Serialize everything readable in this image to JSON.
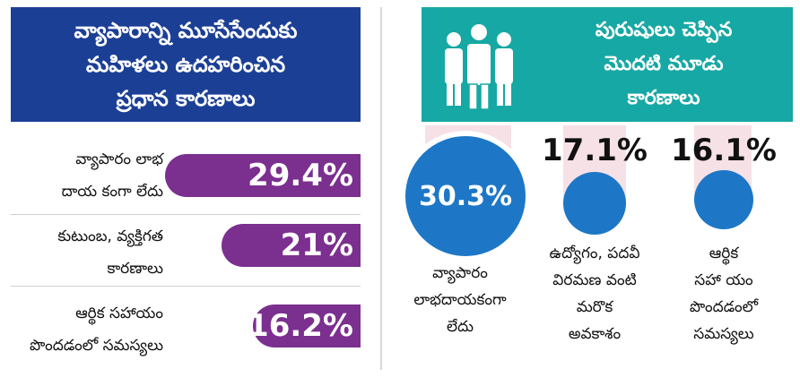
{
  "chart_data": [
    {
      "type": "bar",
      "title": "వ్యాపారాన్ని మూసేసేందుకు మహిళలు ఉదహరించిన ప్రధాన కారణాలు",
      "title_lines": [
        "వ్యాపారాన్ని మూసేసేందుకు",
        "మహిళలు ఉదహరించిన",
        "ప్రధాన కారణాలు"
      ],
      "categories": [
        {
          "line1": "వ్యాపారం లాభ",
          "line2": "దాయ కంగా లేదు"
        },
        {
          "line1": "కుటుంబ, వ్యక్తిగత",
          "line2": "కారణాలు"
        },
        {
          "line1": "ఆర్థిక సహాయం",
          "line2": "పొందడంలో సమస్యలు"
        }
      ],
      "values": [
        29.4,
        21,
        16.2
      ],
      "value_labels": [
        "29.4%",
        "21%",
        "16.2%"
      ],
      "color": "#7b2f8f"
    },
    {
      "type": "bubble",
      "title": "పురుషులు చెప్పిన మొదటి మూడు కారణాలు",
      "title_lines": [
        "పురుషులు చెప్పిన",
        "మొదటి మూడు",
        "కారణాలు"
      ],
      "categories": [
        [
          "వ్యాపారం",
          "లాభదాయకంగా",
          "లేదు"
        ],
        [
          "ఉద్యోగం, పదవీ",
          "విరమణ వంటి",
          "మరొక",
          "అవకాశం"
        ],
        [
          "ఆర్థిక",
          "సహా యం",
          "పొందడంలో",
          "సమస్యలు"
        ]
      ],
      "values": [
        30.3,
        17.1,
        16.1
      ],
      "value_labels": [
        "30.3%",
        "17.1%",
        "16.1%"
      ],
      "color": "#1d77c6"
    }
  ],
  "colors": {
    "left_header_bg": "#1c3f96",
    "right_header_bg": "#16a8a4",
    "stem": "#f6e1e6"
  },
  "icons": {
    "people": "people-group-icon"
  }
}
